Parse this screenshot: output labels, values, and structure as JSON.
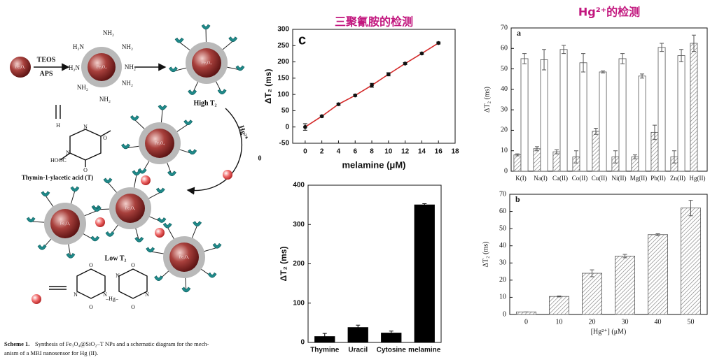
{
  "scheme": {
    "reagents": [
      "TEOS",
      "APS"
    ],
    "sphere_labels": [
      "Fe₃O₄",
      "Fe₃O₄",
      "Fe₃O₄",
      "Fe₃O₄",
      "Fe₃O₄",
      "Fe₃O₄",
      "Fe₃O₄"
    ],
    "amine_labels": [
      "NH₂",
      "H₂N",
      "NH₂",
      "H₂N",
      "NH₂",
      "NH₂",
      "NH₂",
      "NH₂"
    ],
    "high_label": "High T₂",
    "ion_label": "Hg²⁺",
    "stray_label": "0",
    "acid_group": "HOOC",
    "thymine_atoms": [
      "H",
      "N",
      "N",
      "O",
      "O"
    ],
    "thymine_name": "Thymin-1-ylacetic acid (T)",
    "low_label": "Low T₂",
    "complex_atoms": [
      "O",
      "N",
      "N",
      "O",
      "–Hg–",
      "O",
      "N",
      "N",
      "O"
    ],
    "caption": {
      "label": "Scheme 1.",
      "lines": [
        "Synthesis of Fe₃O₄@SiO₂–T NPs and a schematic diagram for the mech-",
        "anism of a MRI nanosensor for Hg (II)."
      ]
    }
  },
  "chart_data": [
    {
      "type": "line",
      "title": "三聚氰胺的检测",
      "panel": "c",
      "x": [
        0,
        2,
        4,
        6,
        8,
        10,
        12,
        14,
        16
      ],
      "values": [
        0,
        33,
        70,
        97,
        128,
        162,
        195,
        226,
        258
      ],
      "errors": [
        10,
        3,
        3,
        3,
        6,
        5,
        3,
        3,
        3
      ],
      "color": "#d42a2a",
      "marker_color": "#111111",
      "xlim": [
        -1.5,
        18
      ],
      "xticks": [
        0,
        2,
        4,
        6,
        8,
        10,
        12,
        14,
        16,
        18
      ],
      "ylim": [
        -50,
        300
      ],
      "yticks": [
        -50,
        0,
        50,
        100,
        150,
        200,
        250,
        300
      ],
      "xlabel": "melamine (μM)",
      "ylabel": "ΔT₂ (ms)"
    },
    {
      "type": "bar",
      "categories": [
        "Thymine",
        "Uracil",
        "Cytosine",
        "melamine"
      ],
      "values": [
        15,
        38,
        24,
        350
      ],
      "errors": [
        8,
        6,
        5,
        3
      ],
      "color": "#000000",
      "ylim": [
        0,
        400
      ],
      "yticks": [
        0,
        100,
        200,
        300,
        400
      ],
      "ylabel": "ΔT₂ (ms)"
    },
    {
      "type": "bar",
      "title": "Hg²⁺的检测",
      "panel": "a",
      "categories": [
        "K(I)",
        "Na(I)",
        "Ca(II)",
        "Co(II)",
        "Cu(II)",
        "Ni(II)",
        "Mg(II)",
        "Pb(II)",
        "Zn(II)",
        "Hg(II)"
      ],
      "series": [
        {
          "color": "#777777",
          "hatched": true,
          "values": [
            8,
            11,
            9.5,
            7,
            19.5,
            7,
            7,
            19,
            7,
            62.5
          ],
          "errors": [
            0.5,
            1,
            1,
            3,
            1.5,
            3,
            1,
            3.5,
            3,
            4
          ]
        },
        {
          "color": "#ffffff",
          "hatched": false,
          "values": [
            55,
            54.5,
            59.5,
            53,
            48.5,
            55,
            46.5,
            60.5,
            56.5,
            null
          ],
          "errors": [
            2.5,
            5,
            2,
            4.5,
            0.5,
            2.5,
            1,
            2,
            3,
            null
          ]
        }
      ],
      "ylim": [
        0,
        70
      ],
      "yticks": [
        0,
        10,
        20,
        30,
        40,
        50,
        60,
        70
      ],
      "ylabel": "ΔT₂ (ms)"
    },
    {
      "type": "bar",
      "panel": "b",
      "categories": [
        "0",
        "10",
        "20",
        "30",
        "40",
        "50"
      ],
      "values": [
        1.5,
        10.5,
        24,
        34,
        46.5,
        62
      ],
      "errors": [
        0,
        0.3,
        2,
        1,
        0.5,
        4.5
      ],
      "color": "#777777",
      "hatched": true,
      "ylim": [
        0,
        70
      ],
      "yticks": [
        0,
        10,
        20,
        30,
        40,
        50,
        60,
        70
      ],
      "xlabel": "[Hg²⁺] (μM)",
      "ylabel": "ΔT₂ (ms)"
    }
  ]
}
